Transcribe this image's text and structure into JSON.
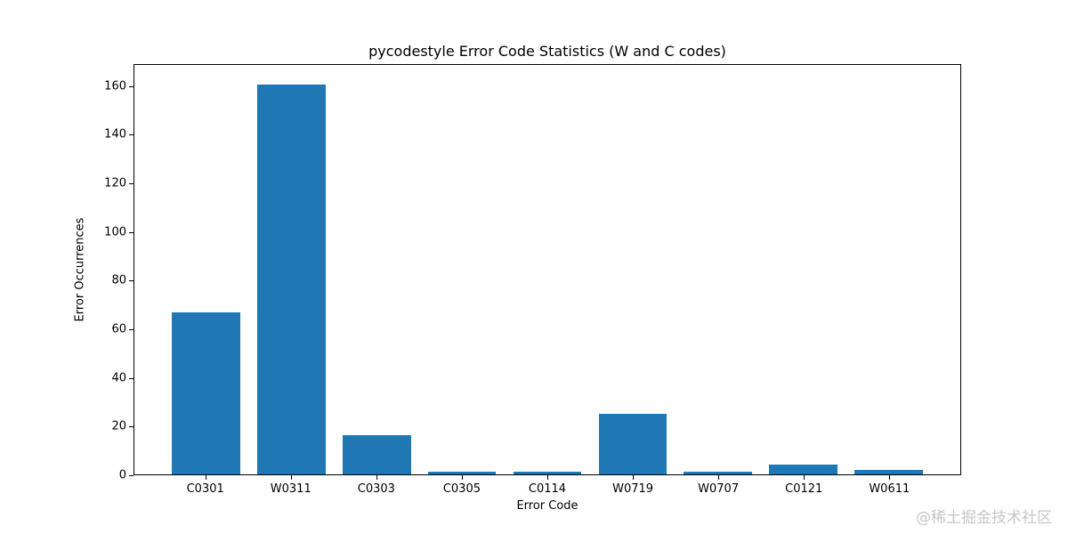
{
  "chart_data": {
    "type": "bar",
    "title": "pycodestyle Error Code Statistics (W and C codes)",
    "xlabel": "Error Code",
    "ylabel": "Error Occurrences",
    "categories": [
      "C0301",
      "W0311",
      "C0303",
      "C0305",
      "C0114",
      "W0719",
      "W0707",
      "C0121",
      "W0611"
    ],
    "values": [
      67,
      161,
      16,
      1,
      1,
      25,
      1,
      4,
      2
    ],
    "yticks": [
      0,
      20,
      40,
      60,
      80,
      100,
      120,
      140,
      160
    ],
    "ylim": [
      0,
      169.05
    ],
    "xlim": [
      -0.84,
      8.84
    ],
    "bar_relative_width": 0.8,
    "bar_color": "#1f77b4",
    "grid": false,
    "legend": "none"
  },
  "watermark": {
    "text": "@稀土掘金技术社区"
  }
}
